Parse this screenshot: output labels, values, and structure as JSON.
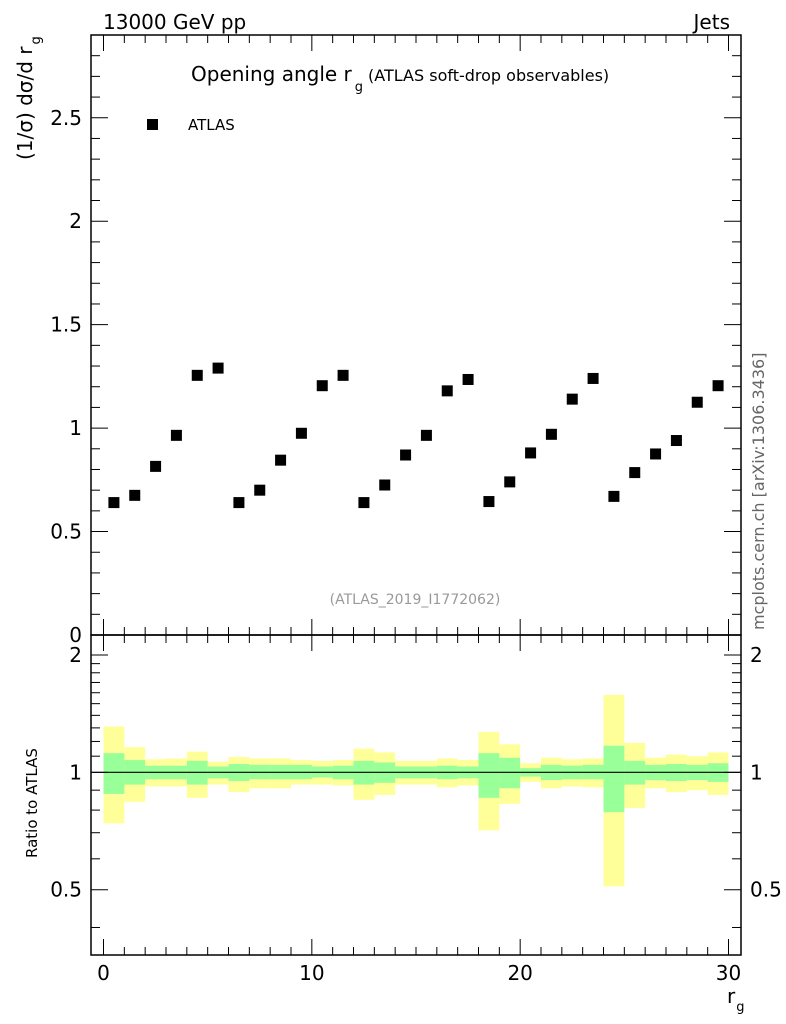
{
  "chart_data": {
    "type": "scatter",
    "header_left": "13000 GeV pp",
    "header_right": "Jets",
    "title_main": "Opening angle r",
    "title_sub": "g",
    "title_note": "(ATLAS soft-drop observables)",
    "ylabel_main": "(1/σ) dσ/d r",
    "ylabel_sub": "g",
    "ratio_ylabel": "Ratio to ATLAS",
    "xlabel_main": "r",
    "xlabel_sub": "g",
    "analysis_id": "(ATLAS_2019_I1772062)",
    "side_label": "mcplots.cern.ch [arXiv:1306.3436]",
    "legend": {
      "label": "ATLAS",
      "placement": "top-left",
      "color": "#000000"
    },
    "xlim": [
      -0.6,
      30.6
    ],
    "ylim": [
      0,
      2.9
    ],
    "ratio_ylim": [
      0.34,
      2.25
    ],
    "x_ticks": [
      0,
      10,
      20,
      30
    ],
    "x_tick_labels": [
      "0",
      "10",
      "20",
      "30"
    ],
    "y_ticks": [
      0,
      0.5,
      1,
      1.5,
      2,
      2.5
    ],
    "y_tick_labels": [
      "0",
      "0.5",
      "1",
      "1.5",
      "2",
      "2.5"
    ],
    "ratio_y_ticks": [
      0.5,
      1,
      2
    ],
    "ratio_y_tick_labels": [
      "0.5",
      "1",
      "2"
    ],
    "colors": {
      "inner_band": "#99ff99",
      "outer_band": "#ffff99",
      "marker": "#000000",
      "reference_line": "#000000"
    },
    "series": [
      {
        "name": "ATLAS",
        "x": [
          0.5,
          1.5,
          2.5,
          3.5,
          4.5,
          5.5,
          6.5,
          7.5,
          8.5,
          9.5,
          10.5,
          11.5,
          12.5,
          13.5,
          14.5,
          15.5,
          16.5,
          17.5,
          18.5,
          19.5,
          20.5,
          21.5,
          22.5,
          23.5,
          24.5,
          25.5,
          26.5,
          27.5,
          28.5,
          29.5
        ],
        "y": [
          0.64,
          0.675,
          0.815,
          0.965,
          1.255,
          1.29,
          0.64,
          0.7,
          0.845,
          0.975,
          1.205,
          1.255,
          0.64,
          0.725,
          0.87,
          0.965,
          1.18,
          1.235,
          0.645,
          0.74,
          0.88,
          0.97,
          1.14,
          1.24,
          0.67,
          0.785,
          0.875,
          0.94,
          1.125,
          1.205
        ]
      }
    ],
    "ratio_bands": {
      "x_edges": [
        0,
        1,
        2,
        3,
        4,
        5,
        6,
        7,
        8,
        9,
        10,
        11,
        12,
        13,
        14,
        15,
        16,
        17,
        18,
        19,
        20,
        21,
        22,
        23,
        24,
        25,
        26,
        27,
        28,
        29,
        30
      ],
      "inner_low": [
        0.88,
        0.93,
        0.96,
        0.96,
        0.93,
        0.965,
        0.95,
        0.96,
        0.96,
        0.96,
        0.97,
        0.96,
        0.93,
        0.94,
        0.965,
        0.965,
        0.96,
        0.965,
        0.86,
        0.91,
        0.975,
        0.955,
        0.96,
        0.96,
        0.79,
        0.93,
        0.955,
        0.95,
        0.955,
        0.945
      ],
      "inner_high": [
        1.12,
        1.075,
        1.04,
        1.04,
        1.07,
        1.035,
        1.05,
        1.045,
        1.045,
        1.045,
        1.035,
        1.04,
        1.07,
        1.06,
        1.035,
        1.035,
        1.04,
        1.035,
        1.12,
        1.09,
        1.025,
        1.045,
        1.04,
        1.045,
        1.17,
        1.07,
        1.045,
        1.05,
        1.045,
        1.055
      ],
      "outer_low": [
        0.74,
        0.84,
        0.92,
        0.92,
        0.86,
        0.93,
        0.89,
        0.91,
        0.91,
        0.93,
        0.93,
        0.925,
        0.85,
        0.875,
        0.93,
        0.93,
        0.915,
        0.925,
        0.71,
        0.83,
        0.945,
        0.91,
        0.92,
        0.915,
        0.51,
        0.81,
        0.91,
        0.89,
        0.9,
        0.875
      ],
      "outer_high": [
        1.31,
        1.16,
        1.08,
        1.085,
        1.13,
        1.065,
        1.095,
        1.085,
        1.085,
        1.075,
        1.07,
        1.075,
        1.15,
        1.125,
        1.07,
        1.07,
        1.085,
        1.075,
        1.27,
        1.18,
        1.055,
        1.09,
        1.08,
        1.085,
        1.58,
        1.19,
        1.09,
        1.11,
        1.1,
        1.125
      ]
    }
  }
}
